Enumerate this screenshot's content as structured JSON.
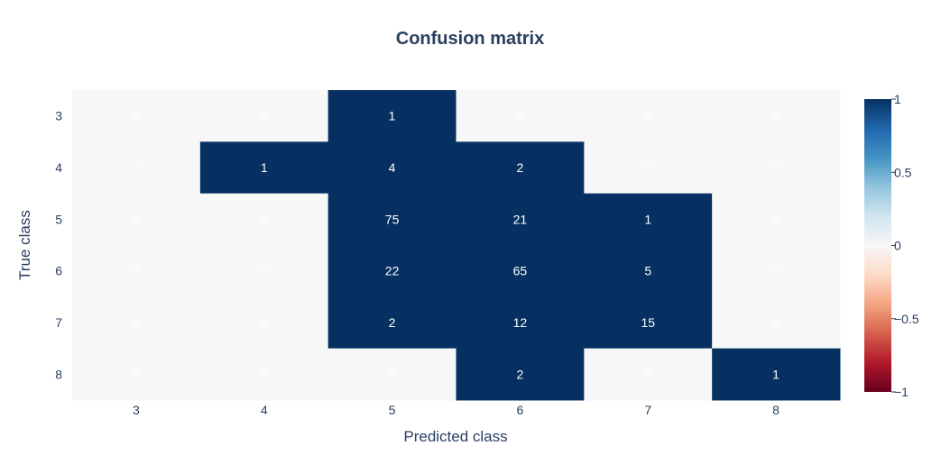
{
  "chart_data": {
    "type": "heatmap",
    "title": "Confusion matrix",
    "xlabel": "Predicted class",
    "ylabel": "True class",
    "x_categories": [
      "3",
      "4",
      "5",
      "6",
      "7",
      "8"
    ],
    "y_categories": [
      "3",
      "4",
      "5",
      "6",
      "7",
      "8"
    ],
    "z": [
      [
        0,
        0,
        1,
        0,
        0,
        0
      ],
      [
        0,
        1,
        4,
        2,
        0,
        0
      ],
      [
        0,
        0,
        75,
        21,
        1,
        0
      ],
      [
        0,
        0,
        22,
        65,
        5,
        0
      ],
      [
        0,
        0,
        2,
        12,
        15,
        0
      ],
      [
        0,
        0,
        0,
        2,
        0,
        1
      ]
    ],
    "colorscale": "RdBu",
    "zmin": -1,
    "zmax": 1,
    "colorbar_ticks": [
      "1",
      "0.5",
      "0",
      "−0.5",
      "−1"
    ],
    "colors": {
      "high": "#053061",
      "zero": "#f7f7f7",
      "low": "#67001f",
      "text": "#2a3f5f"
    }
  }
}
